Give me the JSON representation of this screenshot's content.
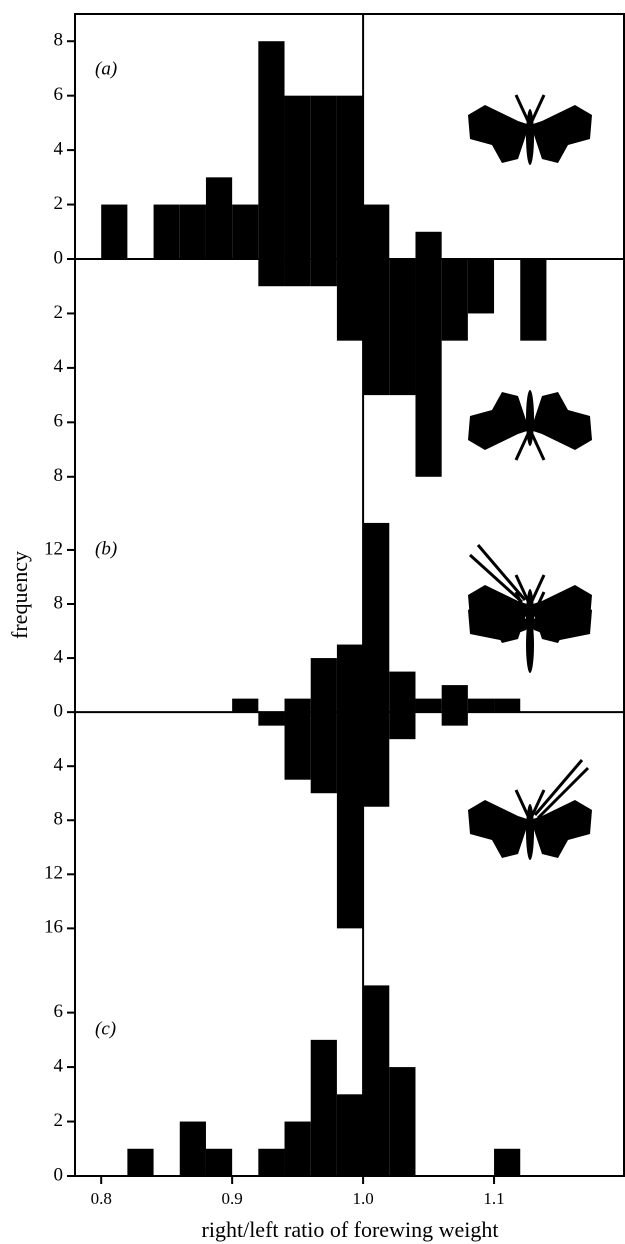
{
  "chart_data": [
    {
      "type": "histogram",
      "panel_label": "(a)",
      "bins": [
        0.78,
        0.8,
        0.82,
        0.84,
        0.86,
        0.88,
        0.9,
        0.92,
        0.94,
        0.96,
        0.98,
        1.0,
        1.02,
        1.04,
        1.06,
        1.08,
        1.1,
        1.12,
        1.14,
        1.16,
        1.18,
        1.2
      ],
      "series": [
        {
          "color": "#000000",
          "values": [
            0,
            2,
            0,
            2,
            2,
            3,
            2,
            8,
            6,
            6,
            6,
            2,
            0,
            1,
            0,
            0,
            0,
            0,
            0,
            0,
            0
          ]
        },
        {
          "color": "#000000",
          "mirrored": true,
          "values": [
            0,
            0,
            0,
            0,
            0,
            0,
            0,
            1,
            1,
            1,
            3,
            5,
            5,
            8,
            3,
            2,
            0,
            3,
            0,
            0,
            0
          ]
        }
      ],
      "xlim": [
        0.78,
        1.2
      ],
      "ylim": [
        -9,
        9
      ],
      "yticks": [
        0,
        2,
        4,
        6,
        8,
        {
          "value": -2,
          "label": "2"
        },
        {
          "value": -4,
          "label": "4"
        },
        {
          "value": -6,
          "label": "6"
        },
        {
          "value": -8,
          "label": "8"
        }
      ],
      "vline": 1.0
    },
    {
      "type": "histogram",
      "panel_label": "(b)",
      "ylabel": "frequency",
      "bins": [
        0.78,
        0.8,
        0.82,
        0.84,
        0.86,
        0.88,
        0.9,
        0.92,
        0.94,
        0.96,
        0.98,
        1.0,
        1.02,
        1.04,
        1.06,
        1.08,
        1.1,
        1.12,
        1.14,
        1.16,
        1.18,
        1.2
      ],
      "series": [
        {
          "color": "#000000",
          "values": [
            0,
            0,
            0,
            0,
            0,
            0,
            1,
            0,
            1,
            4,
            5,
            14,
            3,
            1,
            2,
            1,
            1,
            0,
            0,
            0,
            0
          ]
        },
        {
          "color": "#000000",
          "mirrored": true,
          "values": [
            0,
            0,
            0,
            0,
            0,
            0,
            0,
            1,
            5,
            6,
            16,
            7,
            2,
            0,
            1,
            0,
            0,
            0,
            0,
            0,
            0
          ]
        }
      ],
      "xlim": [
        0.78,
        1.2
      ],
      "ylim": [
        -17.6,
        15.4
      ],
      "yticks": [
        0,
        4,
        8,
        12,
        {
          "value": -4,
          "label": "4"
        },
        {
          "value": -8,
          "label": "8"
        },
        {
          "value": -12,
          "label": "12"
        },
        {
          "value": -16,
          "label": "16"
        }
      ],
      "vline": 1.0
    },
    {
      "type": "histogram",
      "panel_label": "(c)",
      "xlabel": "right/left ratio of forewing weight",
      "bins": [
        0.78,
        0.8,
        0.82,
        0.84,
        0.86,
        0.88,
        0.9,
        0.92,
        0.94,
        0.96,
        0.98,
        1.0,
        1.02,
        1.04,
        1.06,
        1.08,
        1.1,
        1.12,
        1.14,
        1.16,
        1.18,
        1.2
      ],
      "series": [
        {
          "color": "#000000",
          "values": [
            0,
            0,
            1,
            0,
            2,
            1,
            0,
            1,
            2,
            5,
            3,
            7,
            4,
            0,
            0,
            0,
            1,
            0,
            0,
            0,
            0
          ]
        }
      ],
      "xlim": [
        0.78,
        1.2
      ],
      "ylim": [
        0,
        8.3
      ],
      "yticks": [
        0,
        2,
        4,
        6
      ],
      "xticks": [
        0.8,
        0.9,
        {
          "value": 1,
          "label": "1.0"
        },
        1.1
      ],
      "vline": 1.0
    }
  ]
}
